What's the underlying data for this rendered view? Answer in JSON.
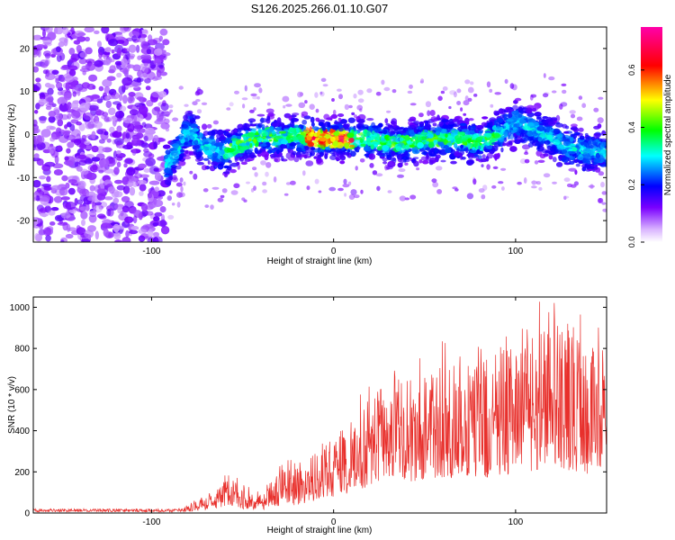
{
  "figure_title": "S126.2025.266.01.10.G07",
  "chart_data": [
    {
      "type": "heatmap",
      "title": "S126.2025.266.01.10.G07",
      "xlabel": "Height of straight line (km)",
      "ylabel": "Frequency (Hz)",
      "xlim": [
        -165,
        150
      ],
      "ylim": [
        -25,
        25
      ],
      "xticks": [
        -100,
        0,
        100
      ],
      "xtick_labels": [
        "-100",
        "0",
        "100"
      ],
      "yticks": [
        -20,
        -10,
        0,
        10,
        20
      ],
      "ytick_labels": [
        "-20",
        "-10",
        "0",
        "10",
        "20"
      ],
      "colorbar": {
        "label": "Normalized spectral amplitude",
        "range": [
          0,
          0.75
        ],
        "ticks": [
          0,
          0.2,
          0.4,
          0.6
        ],
        "tick_labels": [
          "0.0",
          "0.2",
          "0.4",
          "0.6"
        ],
        "colors": [
          "#ffffff",
          "#7a00ff",
          "#0000ff",
          "#00ffff",
          "#00ff00",
          "#ffff00",
          "#ff0000",
          "#ff00aa"
        ]
      },
      "noise_region_x": [
        -165,
        -92
      ],
      "signal_band": {
        "x_range": [
          -92,
          150
        ],
        "center_frequency_hz": [
          [
            -90,
            -7
          ],
          [
            -80,
            1
          ],
          [
            -70,
            -3
          ],
          [
            -60,
            -4
          ],
          [
            -50,
            -2
          ],
          [
            -40,
            0
          ],
          [
            -30,
            -1
          ],
          [
            -20,
            0
          ],
          [
            -10,
            -1
          ],
          [
            0,
            -1
          ],
          [
            10,
            -1
          ],
          [
            20,
            -1
          ],
          [
            30,
            -2
          ],
          [
            40,
            -2
          ],
          [
            50,
            -1
          ],
          [
            60,
            -1
          ],
          [
            70,
            -1
          ],
          [
            80,
            -2
          ],
          [
            90,
            0
          ],
          [
            100,
            3
          ],
          [
            110,
            1
          ],
          [
            120,
            -1
          ],
          [
            130,
            -3
          ],
          [
            140,
            -4
          ]
        ],
        "band_half_width_hz": 5,
        "peak_x": [
          -15,
          10
        ]
      }
    },
    {
      "type": "line",
      "xlabel": "Height of straight line (km)",
      "ylabel": "SNR (10 * v/v)",
      "xlim": [
        -165,
        150
      ],
      "ylim": [
        0,
        1050
      ],
      "xticks": [
        -100,
        0,
        100
      ],
      "xtick_labels": [
        "-100",
        "0",
        "100"
      ],
      "yticks": [
        0,
        200,
        400,
        600,
        800,
        1000
      ],
      "ytick_labels": [
        "0",
        "200",
        "400",
        "600",
        "800",
        "1000"
      ],
      "color": "#e8302c",
      "series": [
        {
          "name": "SNR",
          "envelope_x": [
            -165,
            -100,
            -85,
            -75,
            -65,
            -58,
            -50,
            -40,
            -30,
            -20,
            -10,
            0,
            10,
            20,
            30,
            40,
            50,
            60,
            70,
            80,
            90,
            100,
            110,
            120,
            130,
            140,
            150
          ],
          "envelope_y": [
            18,
            20,
            22,
            60,
            100,
            200,
            120,
            90,
            200,
            250,
            300,
            380,
            450,
            580,
            620,
            650,
            680,
            740,
            700,
            720,
            780,
            820,
            900,
            950,
            870,
            820,
            800
          ],
          "floor_y": [
            5,
            5,
            5,
            10,
            20,
            40,
            20,
            15,
            30,
            40,
            60,
            80,
            100,
            130,
            150,
            150,
            160,
            170,
            160,
            170,
            180,
            190,
            200,
            210,
            200,
            190,
            180
          ]
        }
      ]
    }
  ]
}
